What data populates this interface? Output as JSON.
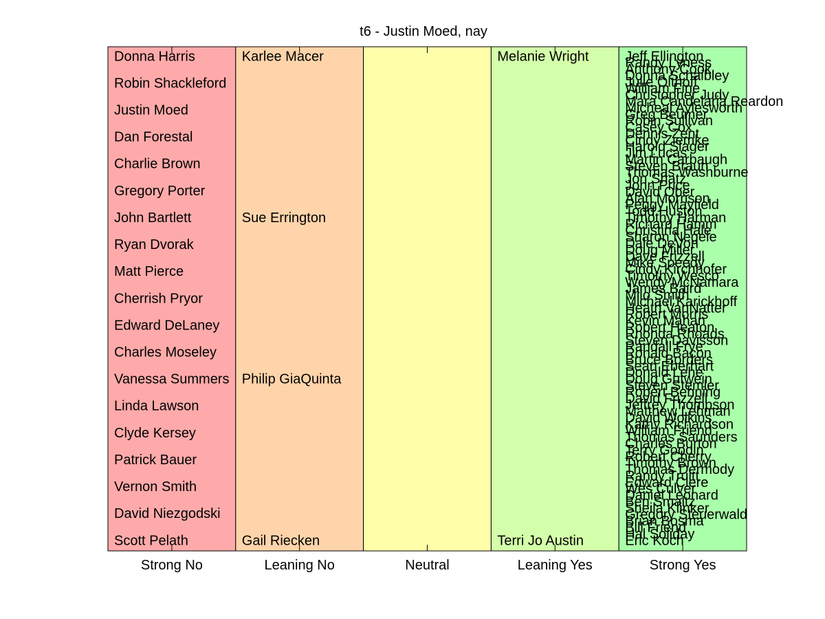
{
  "chart_data": {
    "type": "table",
    "title": "t6 - Justin Moed, nay",
    "categories": [
      "Strong No",
      "Leaning No",
      "Neutral",
      "Leaning Yes",
      "Strong Yes"
    ],
    "colors": [
      "#ffaaaa",
      "#ffd4aa",
      "#ffffaa",
      "#d4ffaa",
      "#aaffaa"
    ],
    "grid": false,
    "columns": [
      {
        "category": "Strong No",
        "names": [
          "Donna Harris",
          "Robin Shackleford",
          "Justin Moed",
          "Dan Forestal",
          "Charlie Brown",
          "Gregory Porter",
          "John Bartlett",
          "Ryan Dvorak",
          "Matt Pierce",
          "Cherrish Pryor",
          "Edward DeLaney",
          "Charles Moseley",
          "Vanessa Summers",
          "Linda Lawson",
          "Clyde Kersey",
          "Patrick Bauer",
          "Vernon Smith",
          "David Niezgodski",
          "Scott Pelath"
        ]
      },
      {
        "category": "Leaning No",
        "names": [
          "Karlee Macer",
          "Sue Errington",
          "Philip GiaQuinta",
          "Gail Riecken"
        ],
        "rows": [
          0,
          6,
          12,
          18
        ]
      },
      {
        "category": "Neutral",
        "names": []
      },
      {
        "category": "Leaning Yes",
        "names": [
          "Melanie Wright",
          "Terri Jo Austin"
        ],
        "rows": [
          0,
          18
        ]
      },
      {
        "category": "Strong Yes",
        "names": [
          "Jeff Ellington",
          "Randy Lyness",
          "Anthony Cook",
          "Donna Schaibley",
          "Julie Olthoff",
          "William Fine",
          "Christopher Judy",
          "Mara Candelaria Reardon",
          "Micheal Aylesworth",
          "Greg Beumer",
          "Robin Sullivan",
          "Casey Cox",
          "Dennis Zent",
          "Cindy Ziemke",
          "Harold Slager",
          "Jim Lucas",
          "Martin Carbaugh",
          "Steven Braun",
          "Thomas Washburne",
          "Jon Shatz",
          "John Price",
          "David Ober",
          "Alan Morrison",
          "Peggy Mayfield",
          "Todd Huston",
          "Timothy Harman",
          "Richard Hamm",
          "Christina Hale",
          "Sharon Negele",
          "Dale DeVon",
          "Doug Miller",
          "Dave Frizzell",
          "Mike Speedy",
          "Cindy Kirchhofer",
          "Timothy Wesco",
          "Wendy McNamara",
          "James Baird",
          "Milo Smith",
          "Michael Karickhoff",
          "Heath VanNatter",
          "Robert Morris",
          "Kevin Mahan",
          "Robert Heaton",
          "Rhonda Rhoads",
          "Steven Davisson",
          "Randall Frye",
          "Ronald Bacon",
          "Bruce Borders",
          "Sean Eberhart",
          "Donald Lehe",
          "Doug Gutwein",
          "Steven Stemler",
          "Robert Behning",
          "David Frizzell",
          "Jeffrey Thompson",
          "Matthew Lehman",
          "David Wolkins",
          "Kathy Richardson",
          "William Friend",
          "Thomas Saunders",
          "Charles Burton",
          "Terry Goodin",
          "Robert Cherry",
          "Timothy Brown",
          "Thomas Dermody",
          "Randy Truitt",
          "Edward Clere",
          "Wes Culver",
          "Daniel Leonard",
          "Ben Smaltz",
          "Sheila Klinker",
          "Gregory Steuerwald",
          "Brian Bosma",
          "Bill Friend",
          "Hal Soliday",
          "Eric Koch"
        ]
      }
    ]
  }
}
